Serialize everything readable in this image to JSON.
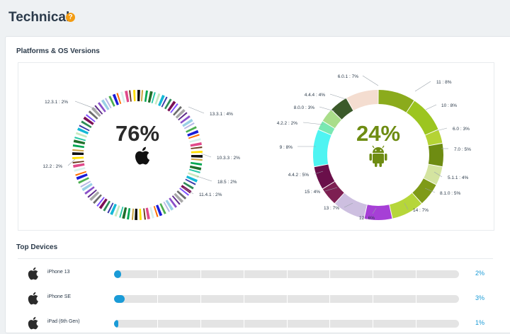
{
  "page": {
    "title": "Technical",
    "help_icon": "question-icon"
  },
  "platforms": {
    "section_title": "Platforms & OS Versions",
    "ios": {
      "percent": "76%",
      "icon": "apple-icon",
      "labels": [
        "12.3.1 : 2%",
        "13.3.1 : 4%",
        "10.3.3 : 2%",
        "18.5 : 2%",
        "11.4.1 : 2%",
        "12.2 : 2%"
      ]
    },
    "android": {
      "percent": "24%",
      "icon": "android-icon",
      "labels": [
        "6.0.1 : 7%",
        "11 : 8%",
        "4.4.4 : 4%",
        "10 : 8%",
        "8.0.0 : 3%",
        "6.0 : 3%",
        "4.2.2 : 2%",
        "7.0 : 5%",
        "9 : 8%",
        "5.1.1 : 4%",
        "4.4.2 : 5%",
        "8.1.0 : 5%",
        "15 : 4%",
        "14 : 7%",
        "13 : 7%",
        "12 : 6%"
      ]
    }
  },
  "chart_data": [
    {
      "type": "pie",
      "title": "",
      "center_label": "76%",
      "categories": [
        "12.3.1",
        "13.3.1",
        "10.3.3",
        "18.5",
        "11.4.1",
        "12.2"
      ],
      "values": [
        2,
        4,
        2,
        2,
        2,
        2
      ]
    },
    {
      "type": "pie",
      "title": "",
      "center_label": "24%",
      "categories": [
        "11",
        "10",
        "6.0",
        "7.0",
        "5.1.1",
        "8.1.0",
        "13",
        "12",
        "14",
        "15",
        "4.4.2",
        "9",
        "4.2.2",
        "8.0.0",
        "4.4.4",
        "6.0.1"
      ],
      "values": [
        8,
        8,
        3,
        5,
        4,
        5,
        7,
        6,
        7,
        4,
        5,
        8,
        2,
        3,
        4,
        7
      ],
      "colors": [
        "#8bab1c",
        "#9cc51f",
        "#b5d335",
        "#6e8c12",
        "#d4e4a0",
        "#7f9a17",
        "#b6d63a",
        "#a63fd6",
        "#cdbfe0",
        "#7d1f52",
        "#6a0f4a",
        "#4ff4f2",
        "#79e8b2",
        "#a9dd8a",
        "#3b5a2a",
        "#f4ddd0"
      ]
    }
  ],
  "devices": {
    "section_title": "Top Devices",
    "icon": "apple-icon",
    "items": [
      {
        "name": "iPhone 13",
        "percent_label": "2%",
        "fraction": 0.02
      },
      {
        "name": "iPhone SE",
        "percent_label": "3%",
        "fraction": 0.03
      },
      {
        "name": "iPad (6th Gen)",
        "percent_label": "1%",
        "fraction": 0.01
      }
    ]
  }
}
